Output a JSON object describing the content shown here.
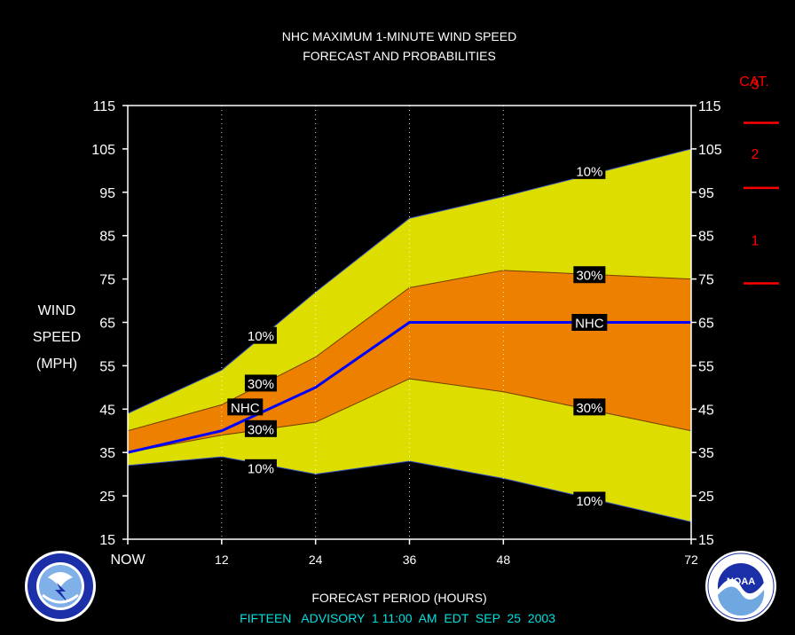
{
  "chart_data": {
    "type": "area",
    "title": "NHC MAXIMUM 1-MINUTE WIND SPEED",
    "subtitle": "FORECAST AND PROBABILITIES",
    "xlabel": "FORECAST PERIOD (HOURS)",
    "ylabel_lines": [
      "WIND",
      "SPEED",
      "(MPH)"
    ],
    "x": [
      0,
      12,
      24,
      36,
      48,
      72
    ],
    "x_tick_labels": [
      "NOW",
      "12",
      "24",
      "36",
      "48",
      "72"
    ],
    "xlim": [
      0,
      72
    ],
    "ylim": [
      15,
      115
    ],
    "y_ticks": [
      15,
      25,
      35,
      45,
      55,
      65,
      75,
      85,
      95,
      105,
      115
    ],
    "grid": "vertical dotted",
    "bands": {
      "upper_10": [
        44,
        54,
        72,
        89,
        94,
        105
      ],
      "upper_30": [
        40,
        46,
        57,
        73,
        77,
        75
      ],
      "nhc": [
        35,
        40,
        50,
        65,
        65,
        65
      ],
      "lower_30": [
        35,
        39,
        42,
        52,
        49,
        40
      ],
      "lower_10": [
        32,
        34,
        30,
        33,
        29,
        19
      ]
    },
    "colors": {
      "outer_band": "#dddd00",
      "inner_band": "#ee8000",
      "nhc_line": "#0000ff",
      "category_text": "#ff0000",
      "footer_text": "#00e0e0"
    },
    "annotations": [
      {
        "text": "10%",
        "x": 17,
        "y": 62
      },
      {
        "text": "30%",
        "x": 17,
        "y": 51
      },
      {
        "text": "NHC",
        "x": 15,
        "y": 45.5
      },
      {
        "text": "30%",
        "x": 17,
        "y": 40.5
      },
      {
        "text": "10%",
        "x": 17,
        "y": 31.5
      },
      {
        "text": "10%",
        "x": 59,
        "y": 100
      },
      {
        "text": "30%",
        "x": 59,
        "y": 76
      },
      {
        "text": "NHC",
        "x": 59,
        "y": 65
      },
      {
        "text": "30%",
        "x": 59,
        "y": 45.5
      },
      {
        "text": "10%",
        "x": 59,
        "y": 24
      }
    ],
    "categories_scale": {
      "header": "CAT.",
      "labels": [
        {
          "text": "3",
          "y": 120
        },
        {
          "text": "2",
          "y": 104
        },
        {
          "text": "1",
          "y": 84
        }
      ],
      "thresholds_mph": [
        111,
        96,
        74
      ]
    }
  },
  "footer": "FIFTEEN   ADVISORY  1 11:00  AM  EDT  SEP  25  2003",
  "logos": {
    "left_icon": "nws-logo-icon",
    "right_icon": "noaa-logo-icon",
    "right_text": "NOAA"
  }
}
